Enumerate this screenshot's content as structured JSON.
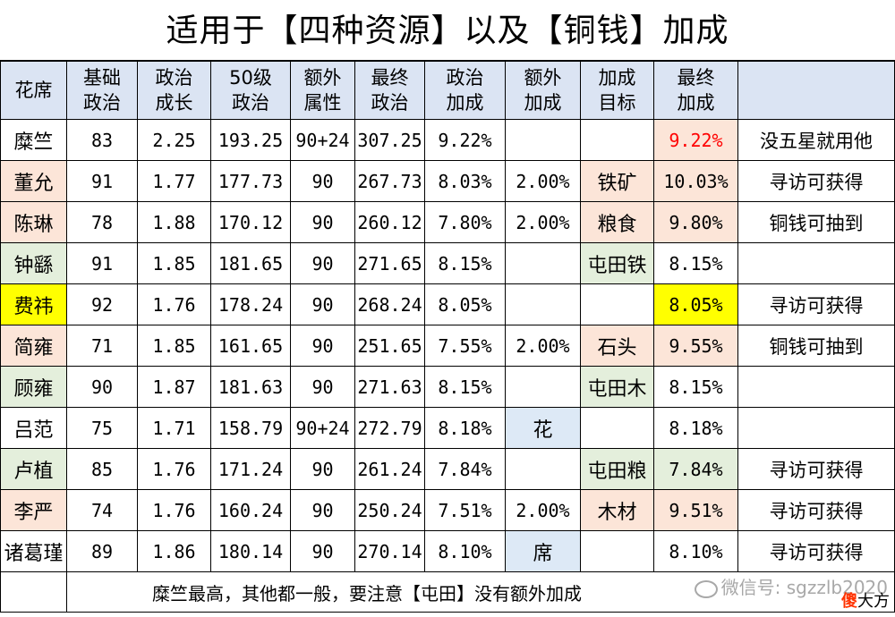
{
  "title": "适用于【四种资源】以及【铜钱】加成",
  "headers": [
    "花席",
    "基础\n政治",
    "政治\n成长",
    "50级\n政治",
    "额外\n属性",
    "最终\n政治",
    "政治\n加成",
    "额外\n加成",
    "加成\n目标",
    "最终\n加成",
    ""
  ],
  "rows": [
    {
      "name": "糜竺",
      "base": "83",
      "growth": "2.25",
      "lv50": "193.25",
      "extra": "90+24",
      "final": "307.25",
      "bonus": "9.22%",
      "extra_bonus": "",
      "target": "",
      "final_bonus": "9.22%",
      "note": "没五星就用他"
    },
    {
      "name": "董允",
      "base": "91",
      "growth": "1.77",
      "lv50": "177.73",
      "extra": "90",
      "final": "267.73",
      "bonus": "8.03%",
      "extra_bonus": "2.00%",
      "target": "铁矿",
      "final_bonus": "10.03%",
      "note": "寻访可获得"
    },
    {
      "name": "陈琳",
      "base": "78",
      "growth": "1.88",
      "lv50": "170.12",
      "extra": "90",
      "final": "260.12",
      "bonus": "7.80%",
      "extra_bonus": "2.00%",
      "target": "粮食",
      "final_bonus": "9.80%",
      "note": "铜钱可抽到"
    },
    {
      "name": "钟繇",
      "base": "91",
      "growth": "1.85",
      "lv50": "181.65",
      "extra": "90",
      "final": "271.65",
      "bonus": "8.15%",
      "extra_bonus": "",
      "target": "屯田铁",
      "final_bonus": "8.15%",
      "note": ""
    },
    {
      "name": "费祎",
      "base": "92",
      "growth": "1.76",
      "lv50": "178.24",
      "extra": "90",
      "final": "268.24",
      "bonus": "8.05%",
      "extra_bonus": "",
      "target": "",
      "final_bonus": "8.05%",
      "note": "寻访可获得"
    },
    {
      "name": "简雍",
      "base": "71",
      "growth": "1.85",
      "lv50": "161.65",
      "extra": "90",
      "final": "251.65",
      "bonus": "7.55%",
      "extra_bonus": "2.00%",
      "target": "石头",
      "final_bonus": "9.55%",
      "note": "铜钱可抽到"
    },
    {
      "name": "顾雍",
      "base": "90",
      "growth": "1.87",
      "lv50": "181.63",
      "extra": "90",
      "final": "271.63",
      "bonus": "8.15%",
      "extra_bonus": "",
      "target": "屯田木",
      "final_bonus": "8.15%",
      "note": ""
    },
    {
      "name": "吕范",
      "base": "75",
      "growth": "1.71",
      "lv50": "158.79",
      "extra": "90+24",
      "final": "272.79",
      "bonus": "8.18%",
      "extra_bonus": "花",
      "target": "",
      "final_bonus": "8.18%",
      "note": ""
    },
    {
      "name": "卢植",
      "base": "85",
      "growth": "1.76",
      "lv50": "171.24",
      "extra": "90",
      "final": "261.24",
      "bonus": "7.84%",
      "extra_bonus": "",
      "target": "屯田粮",
      "final_bonus": "7.84%",
      "note": "寻访可获得"
    },
    {
      "name": "李严",
      "base": "74",
      "growth": "1.76",
      "lv50": "160.24",
      "extra": "90",
      "final": "250.24",
      "bonus": "7.51%",
      "extra_bonus": "2.00%",
      "target": "木材",
      "final_bonus": "9.51%",
      "note": "寻访可获得"
    },
    {
      "name": "诸葛瑾",
      "base": "89",
      "growth": "1.86",
      "lv50": "180.14",
      "extra": "90",
      "final": "270.14",
      "bonus": "8.10%",
      "extra_bonus": "席",
      "target": "",
      "final_bonus": "8.10%",
      "note": "寻访可获得"
    }
  ],
  "footer": "糜竺最高，其他都一般，要注意【屯田】没有额外加成",
  "watermark": "微信号: sgzzlb2020",
  "logo": {
    "part1": "傻",
    "part2": "大方"
  },
  "colors": {
    "rose": "#fce5d8",
    "mint": "#e4efdc",
    "yellow": "#ffff00",
    "sky": "#dde9f6",
    "header": "#dbe4f3",
    "red": "#ff0000"
  }
}
